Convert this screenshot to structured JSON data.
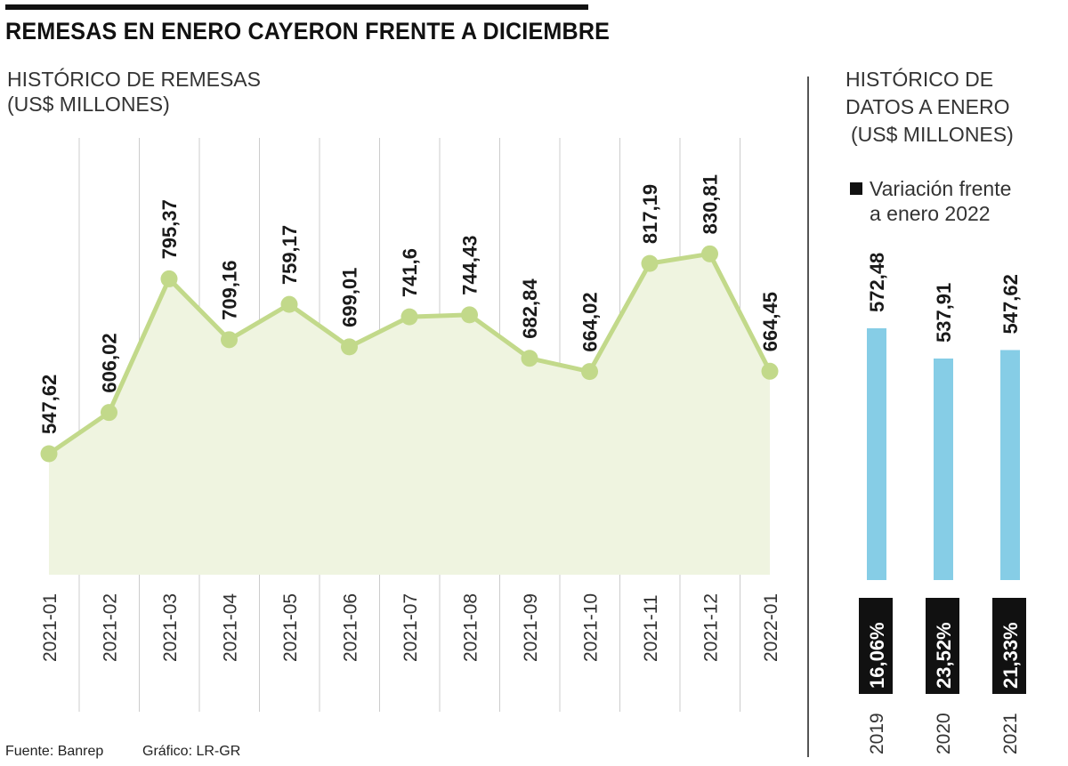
{
  "title": "REMESAS EN ENERO CAYERON FRENTE A DICIEMBRE",
  "main_subtitle_line1": "HISTÓRICO DE REMESAS",
  "main_subtitle_line2": "(US$ MILLONES)",
  "side_subtitle_line1": "HISTÓRICO DE",
  "side_subtitle_line2": "DATOS A ENERO",
  "side_subtitle_line3": "(US$ MILLONES)",
  "legend_line1": "Variación frente",
  "legend_line2": "a enero 2022",
  "source": "Fuente: Banrep",
  "credit": "Gráfico: LR-GR",
  "colors": {
    "line": "#c2d98a",
    "area": "#eff4e0",
    "bar": "#86cde6",
    "badge": "#111111",
    "grid": "#cccccc"
  },
  "chart_data": [
    {
      "type": "line",
      "x": [
        "2021-01",
        "2021-02",
        "2021-03",
        "2021-04",
        "2021-05",
        "2021-06",
        "2021-07",
        "2021-08",
        "2021-09",
        "2021-10",
        "2021-11",
        "2021-12",
        "2022-01"
      ],
      "values": [
        547.62,
        606.02,
        795.37,
        709.16,
        759.17,
        699.01,
        741.6,
        744.43,
        682.84,
        664.02,
        817.19,
        830.81,
        664.45
      ],
      "labels": [
        "547,62",
        "606,02",
        "795,37",
        "709,16",
        "759,17",
        "699,01",
        "741,6",
        "744,43",
        "682,84",
        "664,02",
        "817,19",
        "830,81",
        "664,45"
      ],
      "grid": true
    },
    {
      "type": "bar",
      "categories": [
        "2019",
        "2020",
        "2021"
      ],
      "values": [
        572.48,
        537.91,
        547.62
      ],
      "labels": [
        "572,48",
        "537,91",
        "547,62"
      ],
      "variation": [
        "16,06%",
        "23,52%",
        "21,33%"
      ]
    }
  ]
}
